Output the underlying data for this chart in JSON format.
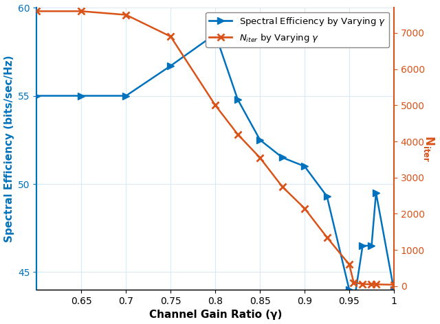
{
  "se_x": [
    0.6,
    0.65,
    0.7,
    0.75,
    0.8,
    0.825,
    0.85,
    0.875,
    0.9,
    0.925,
    0.95,
    0.955,
    0.965,
    0.975,
    0.98,
    1.0
  ],
  "se_y": [
    55.0,
    55.0,
    55.0,
    56.7,
    58.5,
    54.8,
    52.5,
    51.5,
    51.0,
    49.3,
    44.0,
    43.2,
    46.5,
    46.5,
    49.5,
    44.0
  ],
  "niter_x": [
    0.6,
    0.65,
    0.7,
    0.75,
    0.8,
    0.825,
    0.85,
    0.875,
    0.9,
    0.925,
    0.95,
    0.955,
    0.965,
    0.975,
    0.98,
    1.0
  ],
  "niter_y": [
    7600,
    7600,
    7500,
    6900,
    5000,
    4200,
    3550,
    2750,
    2150,
    1350,
    600,
    100,
    60,
    50,
    50,
    40
  ],
  "se_color": "#0072BD",
  "niter_color": "#D95319",
  "xlabel": "Channel Gain Ratio (γ)",
  "ylabel_left": "Spectral Efficiency (bits/sec/Hz)",
  "ylabel_right": "N_{iter}",
  "legend_se": "Spectral Efficiency by Varying γ",
  "legend_niter": "N_{iter} by Varying γ",
  "xlim": [
    0.6,
    1.0
  ],
  "ylim_left": [
    44.0,
    60.0
  ],
  "ylim_right": [
    -100,
    7700
  ],
  "yticks_left": [
    45,
    50,
    55,
    60
  ],
  "yticks_right": [
    0,
    1000,
    2000,
    3000,
    4000,
    5000,
    6000,
    7000
  ],
  "xticks": [
    0.65,
    0.7,
    0.75,
    0.8,
    0.85,
    0.9,
    0.95,
    1.0
  ],
  "grid_color": "#d8eaf8",
  "linewidth": 1.8,
  "markersize_se": 7,
  "markersize_niter": 7
}
